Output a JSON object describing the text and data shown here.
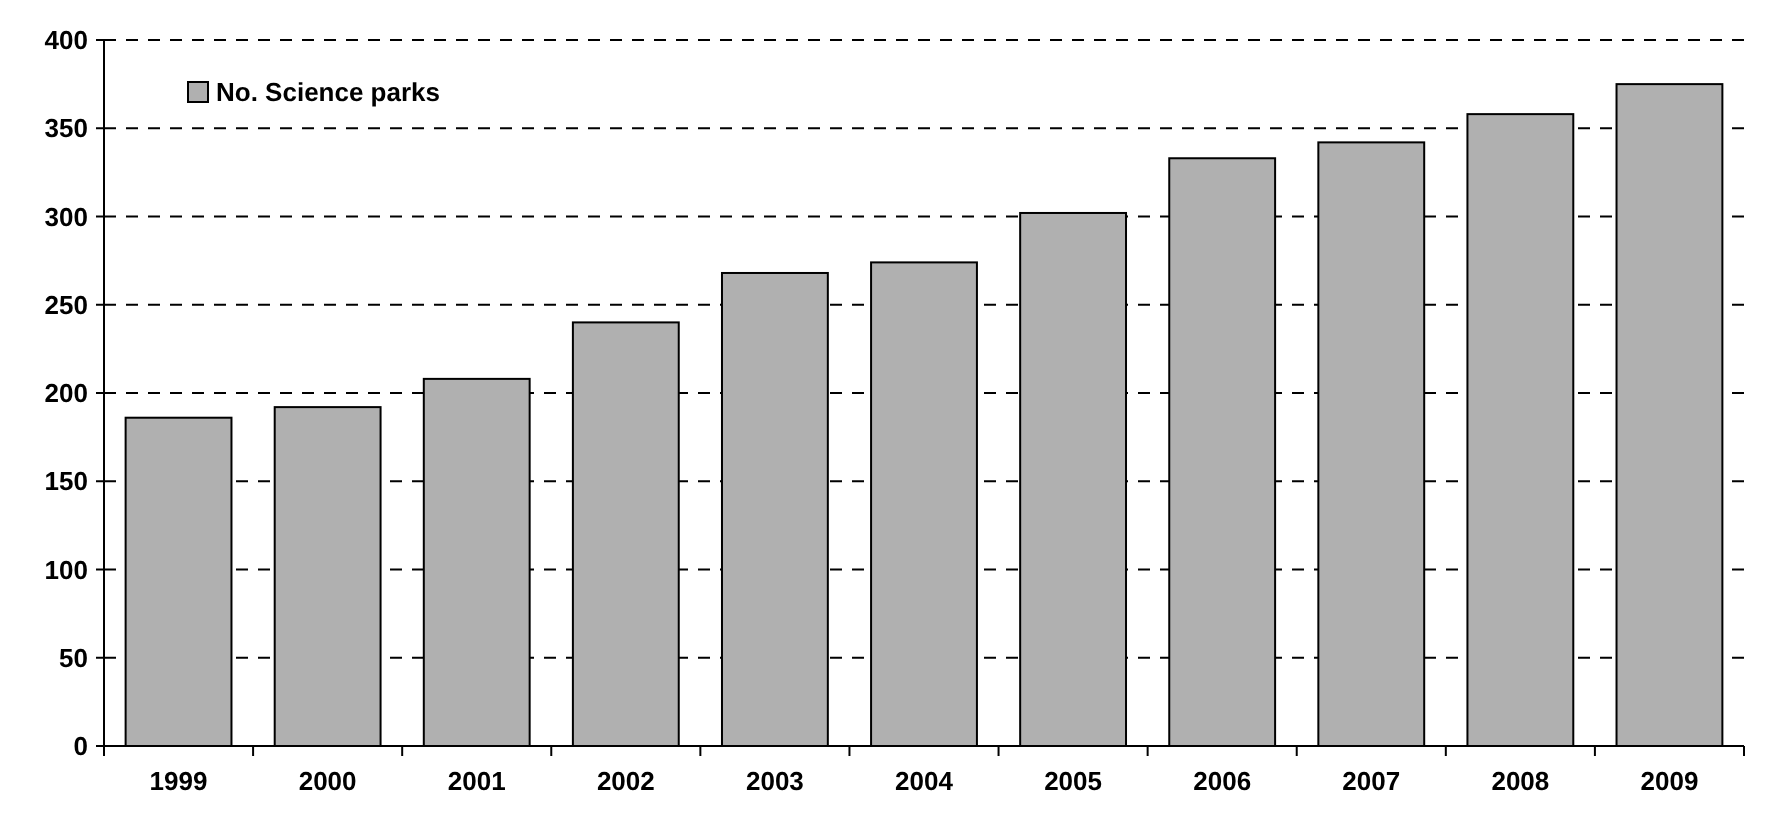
{
  "chart_data": {
    "type": "bar",
    "categories": [
      "1999",
      "2000",
      "2001",
      "2002",
      "2003",
      "2004",
      "2005",
      "2006",
      "2007",
      "2008",
      "2009"
    ],
    "series": [
      {
        "name": "No. Science parks",
        "color": "#b0b0b0",
        "values": [
          186,
          192,
          208,
          240,
          268,
          274,
          302,
          333,
          342,
          358,
          375
        ]
      }
    ],
    "ylim": [
      0,
      400
    ],
    "yticks": [
      0,
      50,
      100,
      150,
      200,
      250,
      300,
      350,
      400
    ],
    "grid": "y",
    "legend": "top left"
  }
}
